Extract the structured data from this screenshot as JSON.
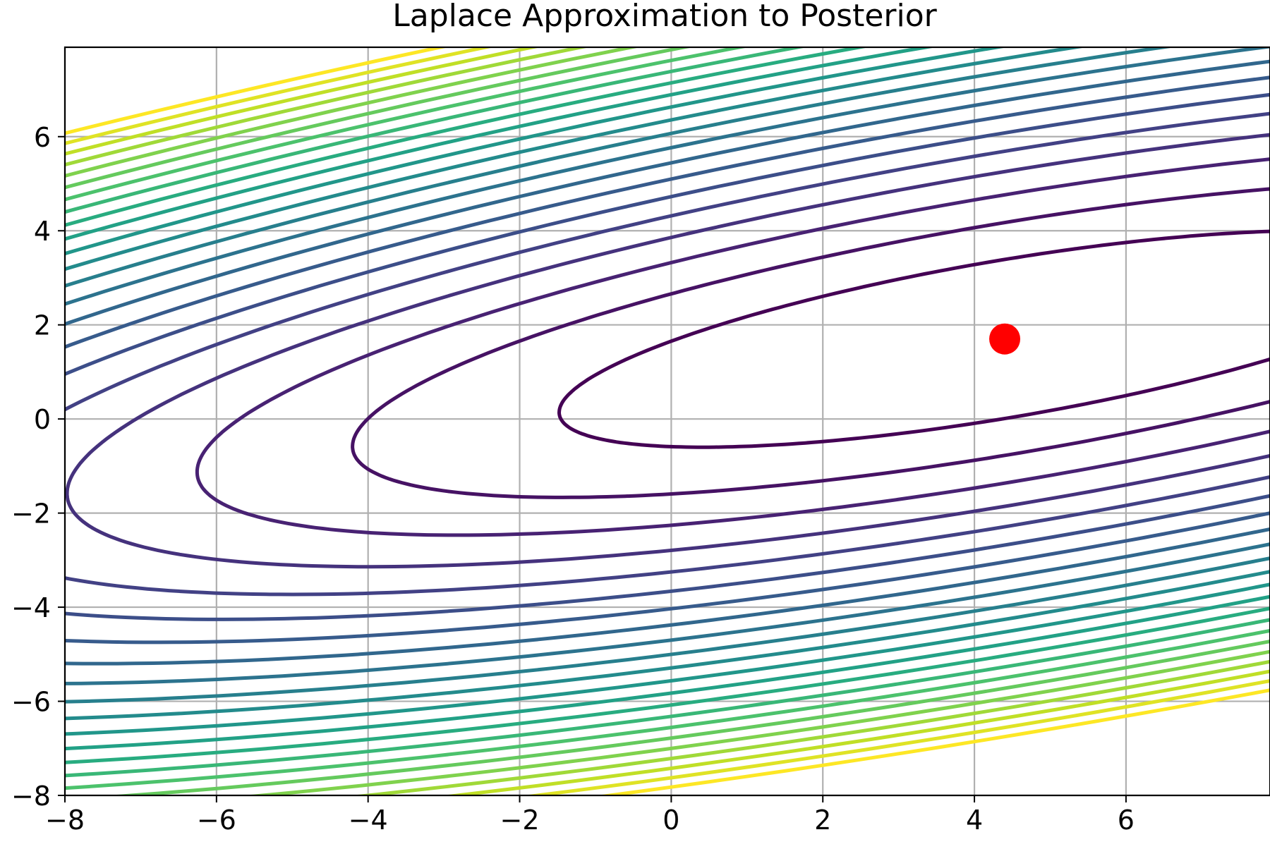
{
  "chart_data": {
    "type": "contour",
    "title": "Laplace Approximation to Posterior",
    "xlabel": "",
    "ylabel": "",
    "xlim": [
      -8,
      8
    ],
    "ylim": [
      -8,
      8
    ],
    "xticks": [
      -8,
      -6,
      -4,
      -2,
      0,
      2,
      4,
      6
    ],
    "yticks": [
      -8,
      -6,
      -4,
      -2,
      0,
      2,
      4,
      6
    ],
    "xtick_labels": [
      "−8",
      "−6",
      "−4",
      "−2",
      "0",
      "2",
      "4",
      "6"
    ],
    "ytick_labels": [
      "−8",
      "−6",
      "−4",
      "−2",
      "0",
      "2",
      "4",
      "6"
    ],
    "grid": true,
    "colormap": "viridis",
    "mode": [
      4.4,
      1.7
    ],
    "mode_marker_color": "#ff0000",
    "gaussian": {
      "mean": [
        4.4,
        1.7
      ],
      "precision": [
        [
          0.075,
          -0.13
        ],
        [
          -0.13,
          0.49
        ]
      ]
    },
    "contour_levels": [
      0.7,
      1.5,
      2.3,
      3.1,
      3.9,
      4.7,
      5.5,
      6.3,
      7.1,
      7.9,
      8.7,
      9.5,
      10.3,
      11.1,
      11.9,
      12.7,
      13.5,
      14.3,
      15.1,
      15.9,
      16.7,
      17.5
    ]
  }
}
